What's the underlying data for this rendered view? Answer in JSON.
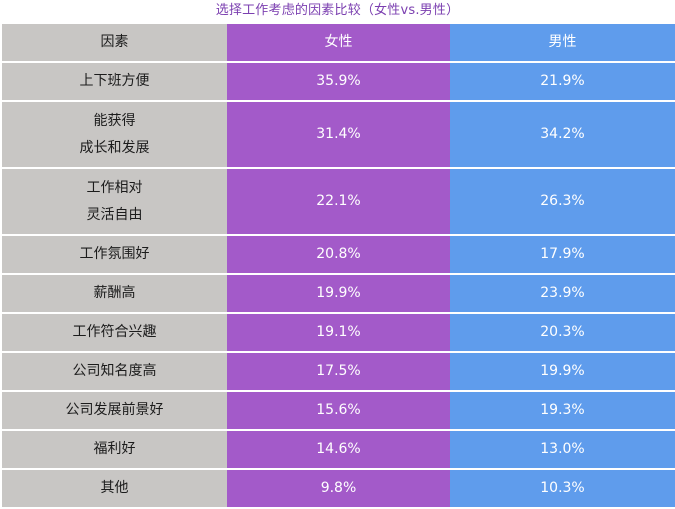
{
  "title": "选择工作考虑的因素比较（女性vs.男性）",
  "colors": {
    "factor_bg": "#c8c6c4",
    "female_bg": "#a35ac9",
    "male_bg": "#5f9cec",
    "title_color": "#7b3fb0"
  },
  "header": {
    "factor": "因素",
    "female": "女性",
    "male": "男性"
  },
  "rows": [
    {
      "factor": "上下班方便",
      "female": "35.9%",
      "male": "21.9%"
    },
    {
      "factor": "能获得\n成长和发展",
      "female": "31.4%",
      "male": "34.2%"
    },
    {
      "factor": "工作相对\n灵活自由",
      "female": "22.1%",
      "male": "26.3%"
    },
    {
      "factor": "工作氛围好",
      "female": "20.8%",
      "male": "17.9%"
    },
    {
      "factor": "薪酬高",
      "female": "19.9%",
      "male": "23.9%"
    },
    {
      "factor": "工作符合兴趣",
      "female": "19.1%",
      "male": "20.3%"
    },
    {
      "factor": "公司知名度高",
      "female": "17.5%",
      "male": "19.9%"
    },
    {
      "factor": "公司发展前景好",
      "female": "15.6%",
      "male": "19.3%"
    },
    {
      "factor": "福利好",
      "female": "14.6%",
      "male": "13.0%"
    },
    {
      "factor": "其他",
      "female": "9.8%",
      "male": "10.3%"
    }
  ]
}
